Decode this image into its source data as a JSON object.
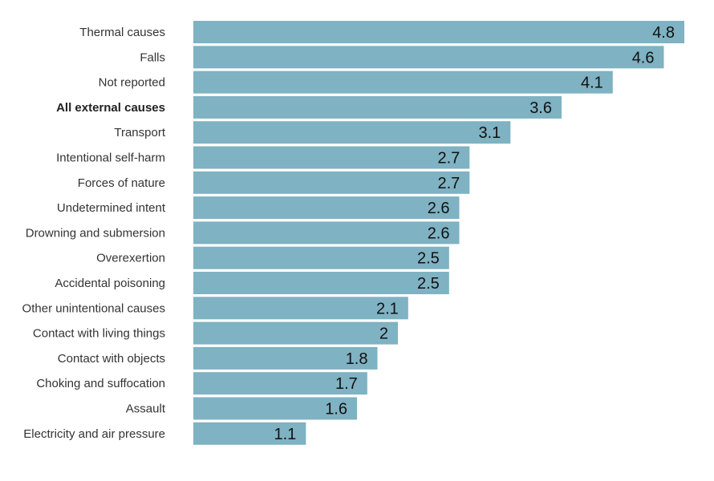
{
  "chart_data": {
    "type": "bar",
    "orientation": "horizontal",
    "title": "",
    "xlabel": "",
    "ylabel": "",
    "xlim": [
      0,
      4.8
    ],
    "grid": false,
    "bar_color": "#7fb2c2",
    "highlight_category": "All external causes",
    "categories": [
      "Thermal causes",
      "Falls",
      "Not reported",
      "All external causes",
      "Transport",
      "Intentional self-harm",
      "Forces of nature",
      "Undetermined intent",
      "Drowning and submersion",
      "Overexertion",
      "Accidental poisoning",
      "Other unintentional causes",
      "Contact with living things",
      "Contact with objects",
      "Choking and suffocation",
      "Assault",
      "Electricity and air pressure"
    ],
    "values": [
      4.8,
      4.6,
      4.1,
      3.6,
      3.1,
      2.7,
      2.7,
      2.6,
      2.6,
      2.5,
      2.5,
      2.1,
      2,
      1.8,
      1.7,
      1.6,
      1.1
    ],
    "value_labels": [
      "4.8",
      "4.6",
      "4.1",
      "3.6",
      "3.1",
      "2.7",
      "2.7",
      "2.6",
      "2.6",
      "2.5",
      "2.5",
      "2.1",
      "2",
      "1.8",
      "1.7",
      "1.6",
      "1.1"
    ]
  }
}
